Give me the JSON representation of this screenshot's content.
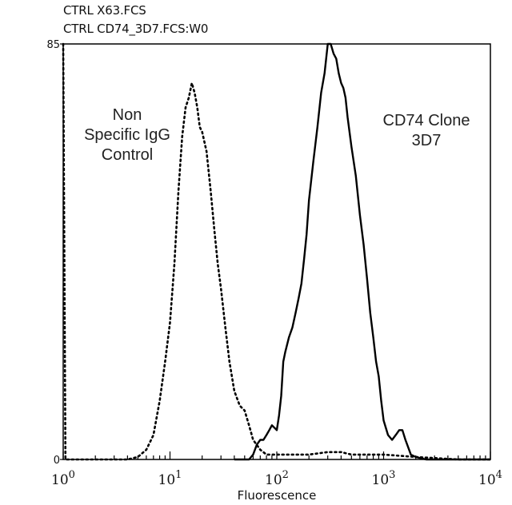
{
  "header": {
    "file1": "CTRL X63.FCS",
    "file2": "CTRL CD74_3D7.FCS:W0"
  },
  "chart_data": {
    "type": "line",
    "xlabel": "Fluorescence",
    "ylabel": "",
    "xscale": "log",
    "xlim": [
      1,
      10000
    ],
    "ylim": [
      0,
      85
    ],
    "yticks": [
      0,
      85
    ],
    "xticks": [
      {
        "value": 1,
        "base": "10",
        "exp": "0"
      },
      {
        "value": 10,
        "base": "10",
        "exp": "1"
      },
      {
        "value": 100,
        "base": "10",
        "exp": "2"
      },
      {
        "value": 1000,
        "base": "10",
        "exp": "3"
      },
      {
        "value": 10000,
        "base": "10",
        "exp": "4"
      }
    ],
    "annotations": [
      {
        "id": "control",
        "lines": [
          "Non",
          "Specific IgG",
          "Control"
        ]
      },
      {
        "id": "cd74",
        "lines": [
          "CD74 Clone",
          "3D7"
        ]
      }
    ],
    "series": [
      {
        "style": "dotted",
        "points": [
          [
            1,
            85
          ],
          [
            1.05,
            0
          ],
          [
            4,
            0
          ],
          [
            5,
            0.5
          ],
          [
            6,
            2
          ],
          [
            7,
            5
          ],
          [
            8,
            12
          ],
          [
            9,
            20
          ],
          [
            10,
            28
          ],
          [
            11,
            40
          ],
          [
            12,
            55
          ],
          [
            13,
            66
          ],
          [
            14,
            72
          ],
          [
            15,
            74
          ],
          [
            16,
            77
          ],
          [
            17,
            75
          ],
          [
            18,
            72
          ],
          [
            19,
            68
          ],
          [
            20,
            67
          ],
          [
            22,
            63
          ],
          [
            24,
            55
          ],
          [
            26,
            47
          ],
          [
            28,
            40
          ],
          [
            30,
            35
          ],
          [
            33,
            27
          ],
          [
            36,
            20
          ],
          [
            40,
            14
          ],
          [
            45,
            11
          ],
          [
            50,
            10
          ],
          [
            55,
            7
          ],
          [
            60,
            4
          ],
          [
            70,
            2
          ],
          [
            80,
            1
          ],
          [
            100,
            1
          ],
          [
            150,
            1
          ],
          [
            200,
            1
          ],
          [
            300,
            1.5
          ],
          [
            400,
            1.5
          ],
          [
            500,
            1
          ],
          [
            700,
            1
          ],
          [
            1000,
            1
          ],
          [
            2000,
            0.5
          ],
          [
            5000,
            0
          ],
          [
            10000,
            0
          ]
        ]
      },
      {
        "style": "solid",
        "points": [
          [
            40,
            0
          ],
          [
            55,
            0
          ],
          [
            60,
            1
          ],
          [
            65,
            3
          ],
          [
            70,
            4
          ],
          [
            75,
            4
          ],
          [
            80,
            5
          ],
          [
            85,
            6
          ],
          [
            90,
            7
          ],
          [
            100,
            6
          ],
          [
            105,
            9
          ],
          [
            110,
            13
          ],
          [
            115,
            20
          ],
          [
            120,
            22
          ],
          [
            130,
            25
          ],
          [
            140,
            27
          ],
          [
            150,
            30
          ],
          [
            160,
            33
          ],
          [
            170,
            36
          ],
          [
            180,
            41
          ],
          [
            190,
            46
          ],
          [
            200,
            53
          ],
          [
            220,
            61
          ],
          [
            240,
            68
          ],
          [
            260,
            75
          ],
          [
            280,
            79
          ],
          [
            300,
            85
          ],
          [
            320,
            85
          ],
          [
            340,
            83
          ],
          [
            360,
            82
          ],
          [
            380,
            79
          ],
          [
            400,
            77
          ],
          [
            420,
            76
          ],
          [
            440,
            74
          ],
          [
            460,
            70
          ],
          [
            500,
            64
          ],
          [
            550,
            58
          ],
          [
            600,
            50
          ],
          [
            650,
            44
          ],
          [
            700,
            37
          ],
          [
            750,
            30
          ],
          [
            800,
            25
          ],
          [
            850,
            20
          ],
          [
            900,
            17
          ],
          [
            950,
            12
          ],
          [
            1000,
            8
          ],
          [
            1100,
            5
          ],
          [
            1200,
            4
          ],
          [
            1300,
            5
          ],
          [
            1400,
            6
          ],
          [
            1500,
            6
          ],
          [
            1600,
            4
          ],
          [
            1800,
            1
          ],
          [
            2000,
            0.5
          ],
          [
            2500,
            0
          ],
          [
            4000,
            0
          ],
          [
            10000,
            0
          ]
        ]
      }
    ]
  }
}
